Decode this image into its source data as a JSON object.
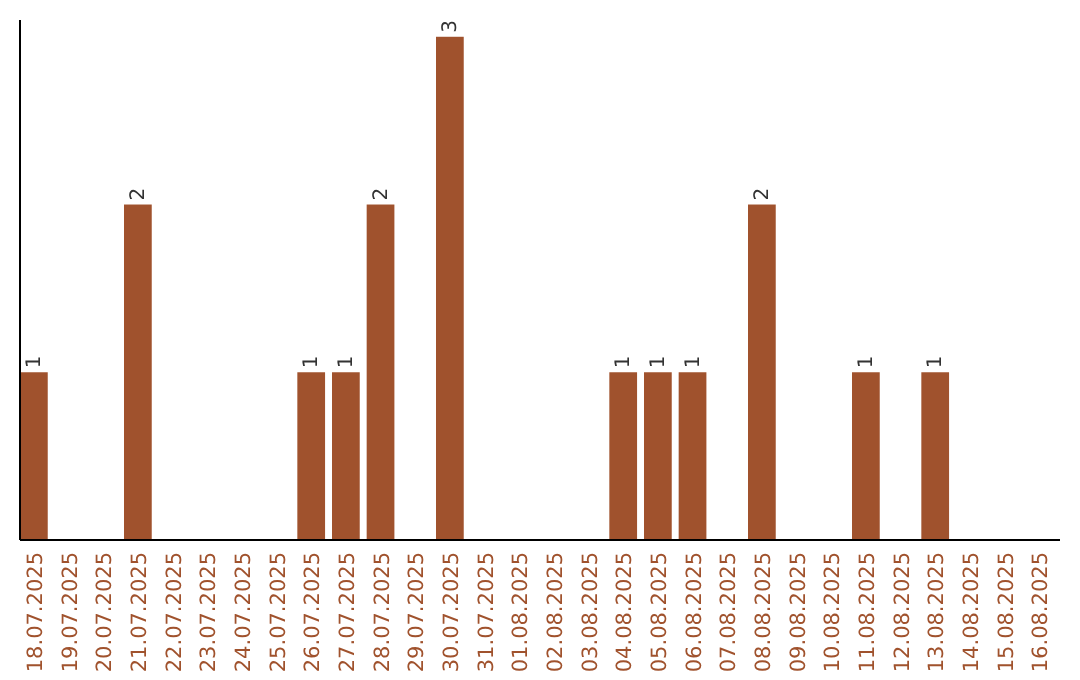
{
  "chart_data": {
    "type": "bar",
    "categories": [
      "18.07.2025",
      "19.07.2025",
      "20.07.2025",
      "21.07.2025",
      "22.07.2025",
      "23.07.2025",
      "24.07.2025",
      "25.07.2025",
      "26.07.2025",
      "27.07.2025",
      "28.07.2025",
      "29.07.2025",
      "30.07.2025",
      "31.07.2025",
      "01.08.2025",
      "02.08.2025",
      "03.08.2025",
      "04.08.2025",
      "05.08.2025",
      "06.08.2025",
      "07.08.2025",
      "08.08.2025",
      "09.08.2025",
      "10.08.2025",
      "11.08.2025",
      "12.08.2025",
      "13.08.2025",
      "14.08.2025",
      "15.08.2025",
      "16.08.2025"
    ],
    "values": [
      1,
      0,
      0,
      2,
      0,
      0,
      0,
      0,
      1,
      1,
      2,
      0,
      3,
      0,
      0,
      0,
      0,
      1,
      1,
      1,
      0,
      2,
      0,
      0,
      1,
      0,
      1,
      0,
      0,
      0
    ],
    "value_labels": [
      "1",
      null,
      null,
      "2",
      null,
      null,
      null,
      null,
      "1",
      "1",
      "2",
      null,
      "3",
      null,
      null,
      null,
      null,
      "1",
      "1",
      "1",
      null,
      "2",
      null,
      null,
      "1",
      null,
      "1",
      null,
      null,
      null
    ],
    "color": "#a0522d",
    "ylim": [
      0,
      3.1
    ],
    "tick_labels": "x"
  }
}
